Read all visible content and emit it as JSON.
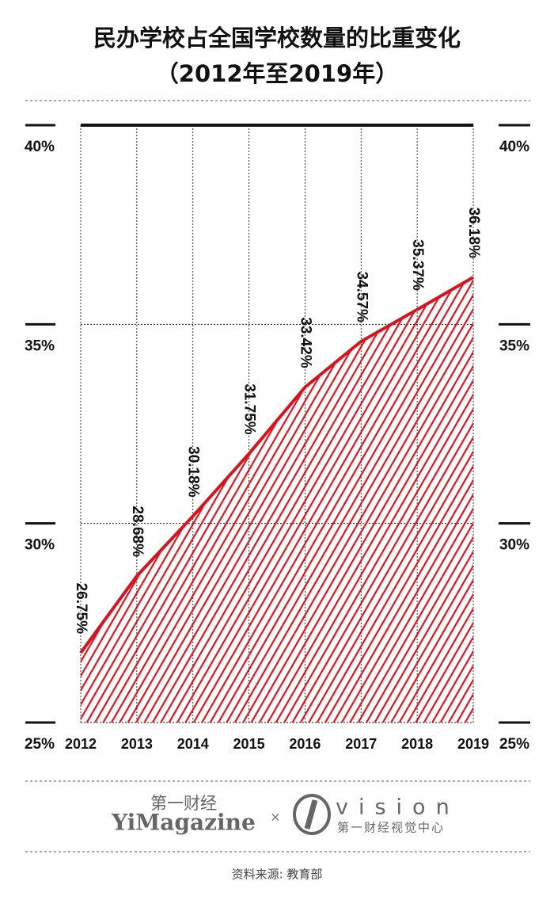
{
  "chart_data": {
    "type": "line",
    "title": "民办学校占全国学校数量的比重变化",
    "subtitle": "（2012年至2019年）",
    "categories": [
      "2012",
      "2013",
      "2014",
      "2015",
      "2016",
      "2017",
      "2018",
      "2019"
    ],
    "values": [
      26.75,
      28.68,
      30.18,
      31.75,
      33.42,
      34.57,
      35.37,
      36.18
    ],
    "value_labels": [
      "26.75%",
      "28.68%",
      "30.18%",
      "31.75%",
      "33.42%",
      "34.57%",
      "35.37%",
      "36.18%"
    ],
    "color": "#d7141e",
    "area_fill": "hatched",
    "ylim": [
      25,
      40
    ],
    "yticks": [
      {
        "value": 25,
        "label": "25%"
      },
      {
        "value": 30,
        "label": "30%"
      },
      {
        "value": 35,
        "label": "35%"
      },
      {
        "value": 40,
        "label": "40%"
      }
    ],
    "grid": true
  },
  "footer": {
    "brand_cn": "第一财经",
    "brand_en": "YiMagazine",
    "cross": "×",
    "vision": "vision",
    "vision_cn": "第一财经视觉中心",
    "source": "资料来源: 教育部"
  }
}
